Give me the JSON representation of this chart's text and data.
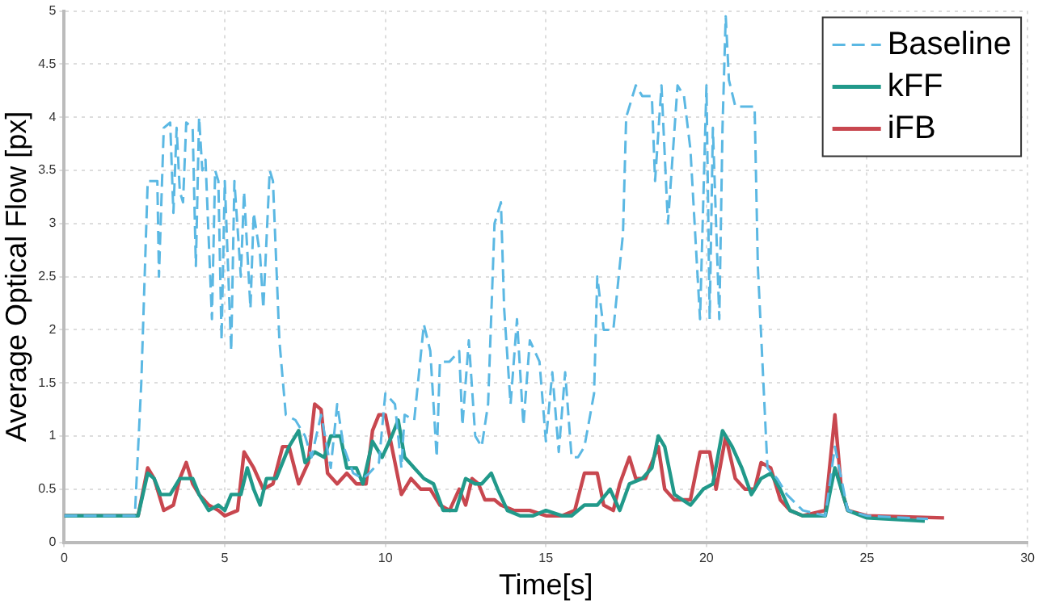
{
  "chart_data": {
    "type": "line",
    "xlabel": "Time[s]",
    "ylabel": "Average Optical Flow [px]",
    "xlim": [
      0,
      30
    ],
    "xticks": [
      0,
      5,
      10,
      15,
      20,
      25,
      30
    ],
    "ylim": [
      0,
      5
    ],
    "yticks": [
      0,
      0.5,
      1,
      1.5,
      2,
      2.5,
      3,
      3.5,
      4,
      4.5,
      5
    ],
    "grid": true,
    "legend": "top right",
    "marker": "none",
    "series": [
      {
        "name": "Baseline",
        "color": "#5bb8e3",
        "line_style": "dashed",
        "x": [
          0,
          2.2,
          2.4,
          2.5,
          2.6,
          2.9,
          2.95,
          3.1,
          3.3,
          3.4,
          3.5,
          3.6,
          3.7,
          3.8,
          4.0,
          4.1,
          4.2,
          4.3,
          4.4,
          4.6,
          4.7,
          4.8,
          4.9,
          5.0,
          5.2,
          5.3,
          5.5,
          5.6,
          5.8,
          5.9,
          6.1,
          6.2,
          6.4,
          6.5,
          6.7,
          6.9,
          7.2,
          7.5,
          7.7,
          8.0,
          8.3,
          8.5,
          8.7,
          9.0,
          9.3,
          9.5,
          9.8,
          10.0,
          10.3,
          10.5,
          10.6,
          10.9,
          11.2,
          11.4,
          11.6,
          11.7,
          12.0,
          12.3,
          12.4,
          12.6,
          12.8,
          13.0,
          13.2,
          13.4,
          13.6,
          13.7,
          13.9,
          14.1,
          14.3,
          14.5,
          14.8,
          15.0,
          15.2,
          15.4,
          15.6,
          15.8,
          16.0,
          16.2,
          16.5,
          16.6,
          16.8,
          17.1,
          17.4,
          17.5,
          17.8,
          18.0,
          18.3,
          18.4,
          18.6,
          18.8,
          19.1,
          19.3,
          19.5,
          19.8,
          20.0,
          20.1,
          20.2,
          20.4,
          20.5,
          20.6,
          20.7,
          20.9,
          21.5,
          21.6,
          21.9,
          22.2,
          22.5,
          23.0,
          23.7,
          24.0,
          24.2,
          24.4,
          25,
          26.9
        ],
        "values": [
          0.25,
          0.25,
          1.5,
          2.45,
          3.4,
          3.4,
          2.5,
          3.9,
          3.95,
          3.1,
          3.9,
          3.3,
          3.2,
          3.95,
          3.9,
          2.6,
          4.0,
          3.5,
          3.6,
          2.1,
          3.5,
          3.4,
          1.9,
          3.4,
          1.8,
          3.4,
          2.5,
          3.3,
          2.2,
          3.1,
          2.7,
          2.2,
          3.5,
          3.4,
          1.9,
          1.2,
          1.15,
          1.0,
          0.8,
          1.2,
          0.7,
          1.3,
          0.9,
          0.65,
          0.6,
          0.65,
          0.75,
          1.4,
          1.3,
          0.7,
          1.2,
          1.15,
          2.05,
          1.8,
          0.8,
          1.7,
          1.7,
          1.8,
          1.1,
          1.9,
          1.0,
          0.9,
          1.3,
          3.0,
          3.2,
          2.2,
          1.3,
          2.1,
          1.1,
          1.9,
          1.7,
          0.95,
          1.6,
          0.85,
          1.6,
          0.8,
          0.8,
          0.9,
          1.4,
          2.5,
          2.0,
          2.0,
          2.9,
          4.0,
          4.3,
          4.2,
          4.2,
          3.4,
          4.3,
          3.0,
          4.3,
          4.2,
          3.7,
          2.1,
          4.3,
          2.1,
          3.9,
          2.1,
          3.9,
          4.95,
          4.35,
          4.1,
          4.1,
          2.6,
          0.7,
          0.6,
          0.45,
          0.3,
          0.25,
          0.9,
          0.6,
          0.3,
          0.25,
          0.22
        ]
      },
      {
        "name": "kFF",
        "color": "#21998a",
        "x": [
          0,
          2.3,
          2.6,
          2.8,
          3.0,
          3.3,
          3.6,
          4.0,
          4.2,
          4.5,
          4.8,
          5.0,
          5.2,
          5.5,
          5.7,
          5.9,
          6.1,
          6.3,
          6.6,
          7.0,
          7.3,
          7.5,
          7.8,
          8.1,
          8.3,
          8.6,
          8.8,
          9.1,
          9.3,
          9.6,
          9.9,
          10.2,
          10.4,
          10.6,
          10.9,
          11.2,
          11.5,
          11.8,
          12.2,
          12.5,
          12.8,
          13.0,
          13.3,
          13.5,
          13.8,
          14.2,
          14.6,
          15.0,
          15.5,
          15.8,
          16.2,
          16.6,
          17.0,
          17.3,
          17.6,
          18.0,
          18.3,
          18.5,
          18.7,
          19.0,
          19.5,
          19.9,
          20.2,
          20.5,
          20.8,
          21.1,
          21.4,
          21.7,
          22.0,
          22.3,
          22.6,
          23.0,
          23.7,
          24.0,
          24.2,
          24.4,
          25,
          26.8
        ],
        "values": [
          0.25,
          0.25,
          0.65,
          0.6,
          0.45,
          0.45,
          0.6,
          0.6,
          0.45,
          0.3,
          0.35,
          0.3,
          0.45,
          0.45,
          0.7,
          0.5,
          0.35,
          0.6,
          0.6,
          0.9,
          1.05,
          0.75,
          0.85,
          0.8,
          1.0,
          1.0,
          0.7,
          0.7,
          0.55,
          0.95,
          0.8,
          1.0,
          1.15,
          0.8,
          0.7,
          0.6,
          0.55,
          0.3,
          0.3,
          0.6,
          0.55,
          0.55,
          0.65,
          0.5,
          0.3,
          0.25,
          0.25,
          0.3,
          0.25,
          0.25,
          0.35,
          0.35,
          0.5,
          0.3,
          0.55,
          0.6,
          0.7,
          1.0,
          0.9,
          0.45,
          0.35,
          0.5,
          0.55,
          1.05,
          0.9,
          0.7,
          0.45,
          0.6,
          0.65,
          0.5,
          0.3,
          0.25,
          0.25,
          0.7,
          0.5,
          0.3,
          0.23,
          0.2
        ]
      },
      {
        "name": "iFB",
        "color": "#c8474f",
        "x": [
          0,
          2.3,
          2.6,
          2.8,
          3.1,
          3.4,
          3.6,
          3.8,
          4.0,
          4.2,
          4.5,
          4.8,
          5.0,
          5.4,
          5.6,
          5.9,
          6.2,
          6.5,
          6.8,
          7.0,
          7.3,
          7.6,
          7.8,
          8.0,
          8.2,
          8.5,
          8.8,
          9.1,
          9.4,
          9.6,
          9.8,
          10.0,
          10.2,
          10.5,
          10.8,
          11.1,
          11.4,
          11.7,
          12.0,
          12.3,
          12.5,
          12.7,
          12.9,
          13.1,
          13.4,
          13.6,
          14.0,
          14.5,
          15.0,
          15.5,
          15.9,
          16.2,
          16.6,
          16.8,
          17.1,
          17.3,
          17.6,
          17.8,
          18.1,
          18.3,
          18.5,
          18.7,
          19.0,
          19.5,
          19.8,
          20.1,
          20.3,
          20.6,
          20.9,
          21.2,
          21.5,
          21.7,
          22.0,
          22.3,
          22.6,
          23.0,
          23.7,
          24.0,
          24.2,
          24.4,
          25,
          27.4
        ],
        "values": [
          0.25,
          0.25,
          0.7,
          0.6,
          0.3,
          0.35,
          0.6,
          0.75,
          0.55,
          0.45,
          0.35,
          0.3,
          0.25,
          0.3,
          0.85,
          0.7,
          0.5,
          0.55,
          0.9,
          0.9,
          0.55,
          0.75,
          1.3,
          1.25,
          0.65,
          0.55,
          0.65,
          0.55,
          0.55,
          1.05,
          1.2,
          1.2,
          0.9,
          0.45,
          0.6,
          0.5,
          0.5,
          0.35,
          0.3,
          0.5,
          0.35,
          0.6,
          0.55,
          0.4,
          0.4,
          0.35,
          0.3,
          0.3,
          0.25,
          0.25,
          0.3,
          0.65,
          0.65,
          0.35,
          0.3,
          0.55,
          0.8,
          0.6,
          0.6,
          0.75,
          0.9,
          0.5,
          0.4,
          0.4,
          0.85,
          0.85,
          0.5,
          1.0,
          0.6,
          0.5,
          0.5,
          0.75,
          0.7,
          0.4,
          0.3,
          0.25,
          0.3,
          1.2,
          0.5,
          0.3,
          0.25,
          0.23
        ]
      }
    ]
  }
}
